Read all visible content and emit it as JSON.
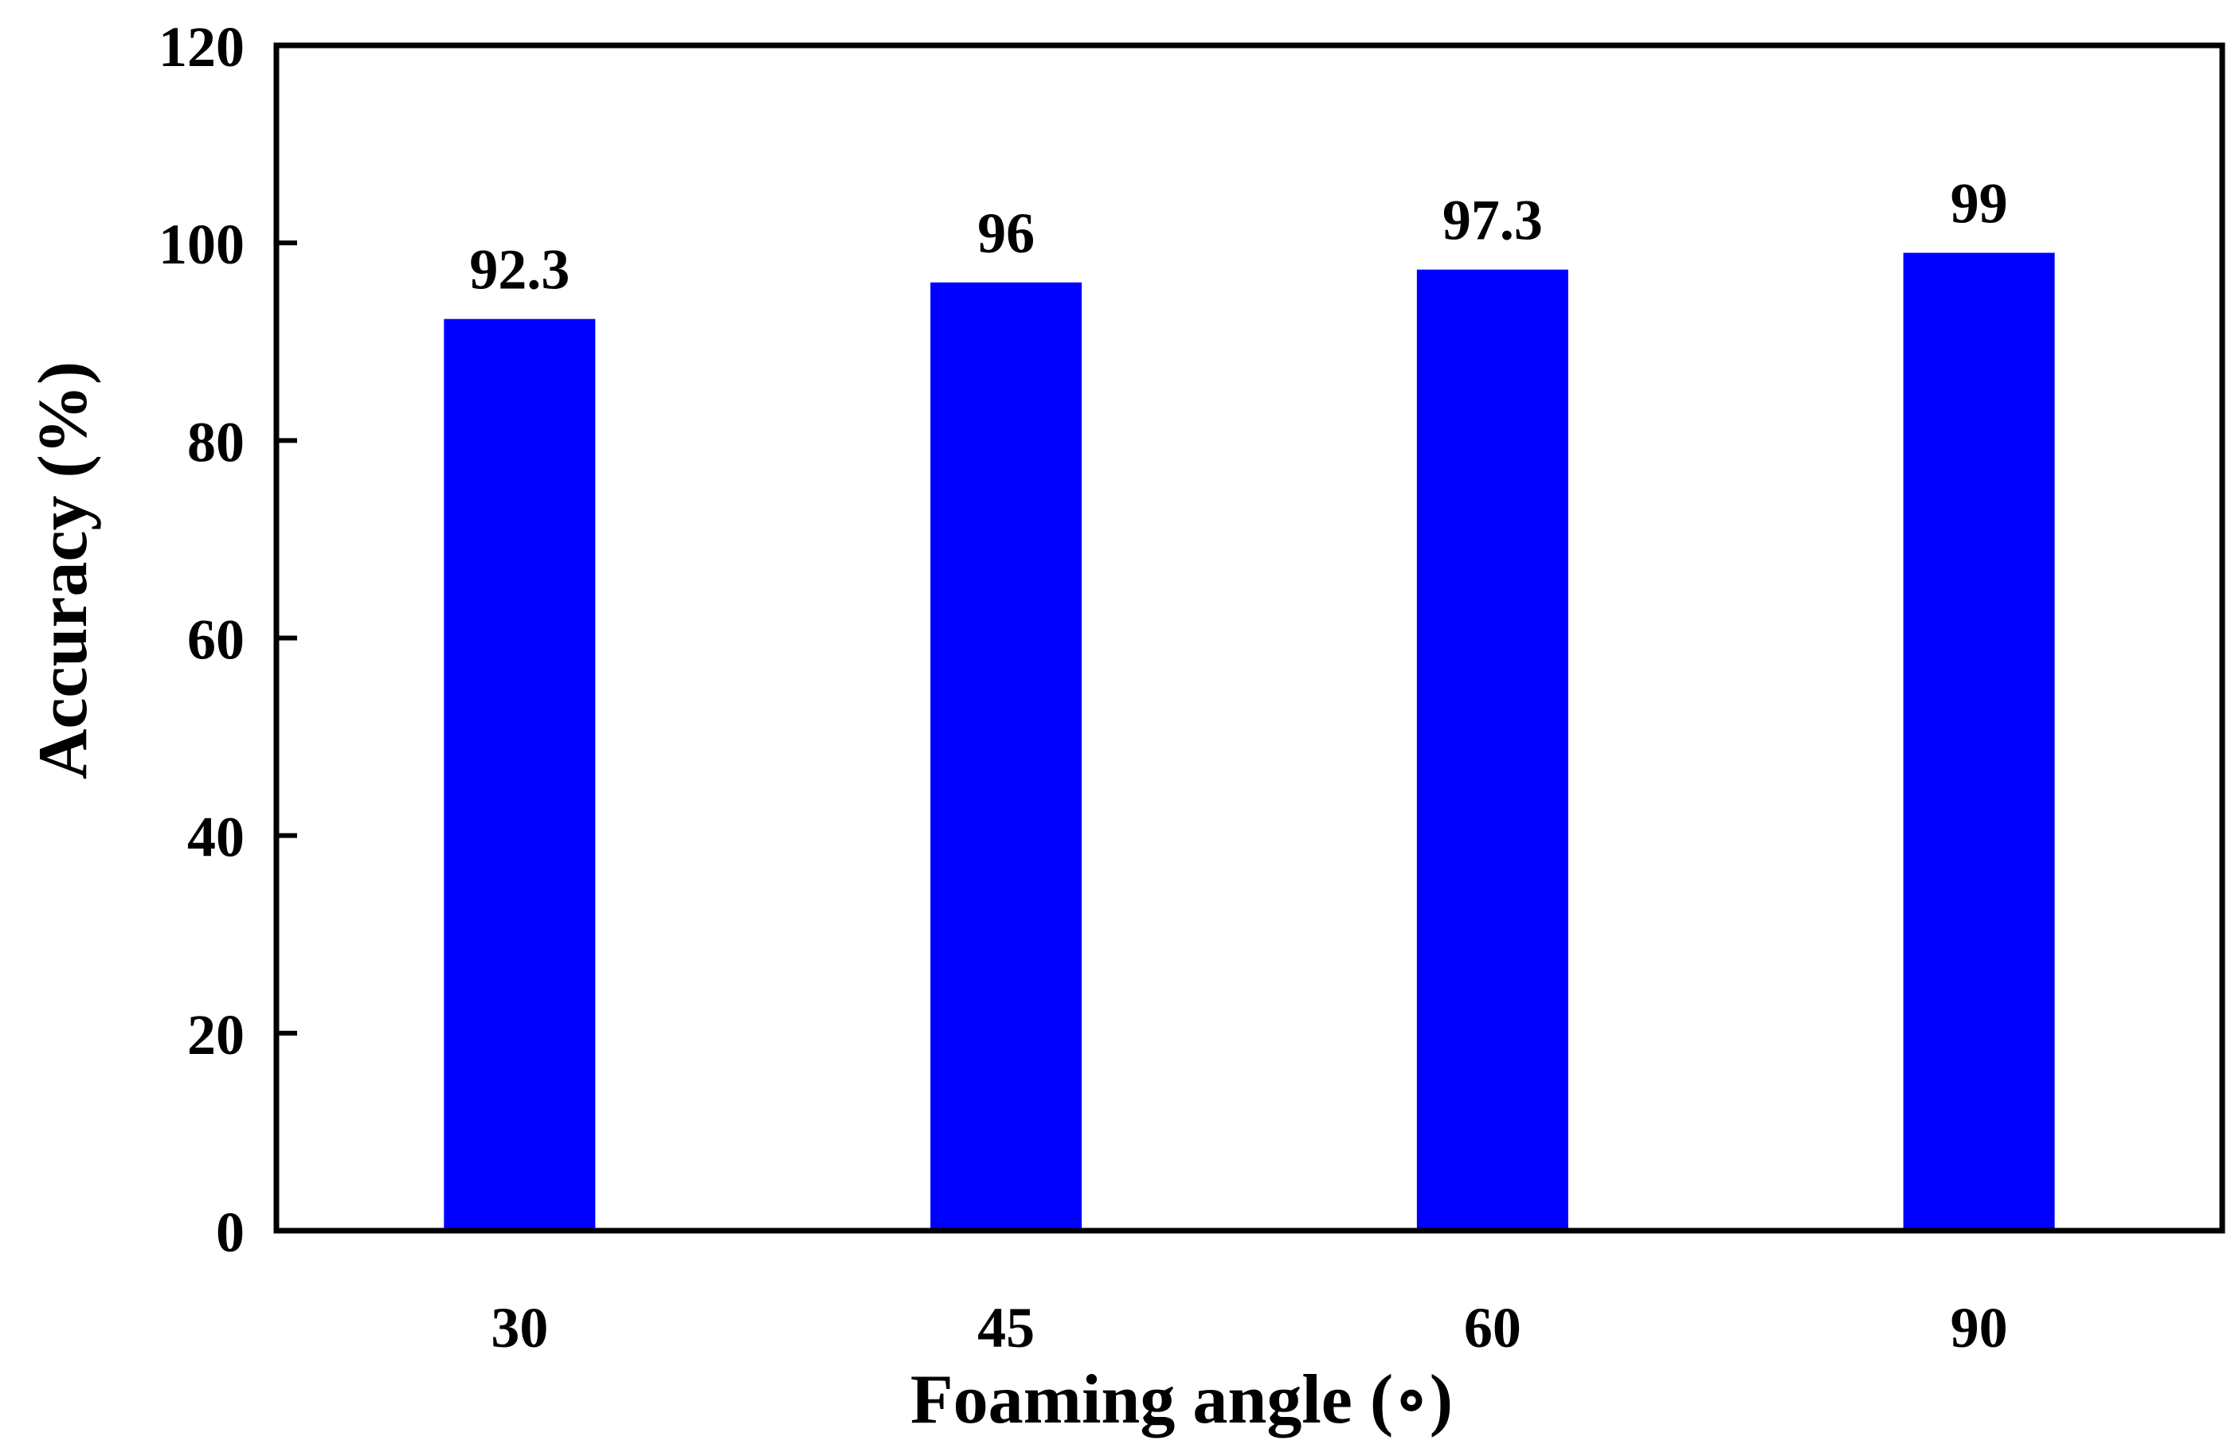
{
  "chart_data": {
    "type": "bar",
    "title": "",
    "xlabel": "Foaming angle (∘)",
    "ylabel": "Accuracy  (%)",
    "categories": [
      "30",
      "45",
      "60",
      "90"
    ],
    "values": [
      92.3,
      96,
      97.3,
      99
    ],
    "data_labels": [
      "92.3",
      "96",
      "97.3",
      "99"
    ],
    "ylim": [
      0,
      120
    ],
    "yticks": [
      "0",
      "20",
      "40",
      "60",
      "80",
      "100",
      "120"
    ],
    "grid": false,
    "legend": "none",
    "bar_color": "#0000FF"
  }
}
